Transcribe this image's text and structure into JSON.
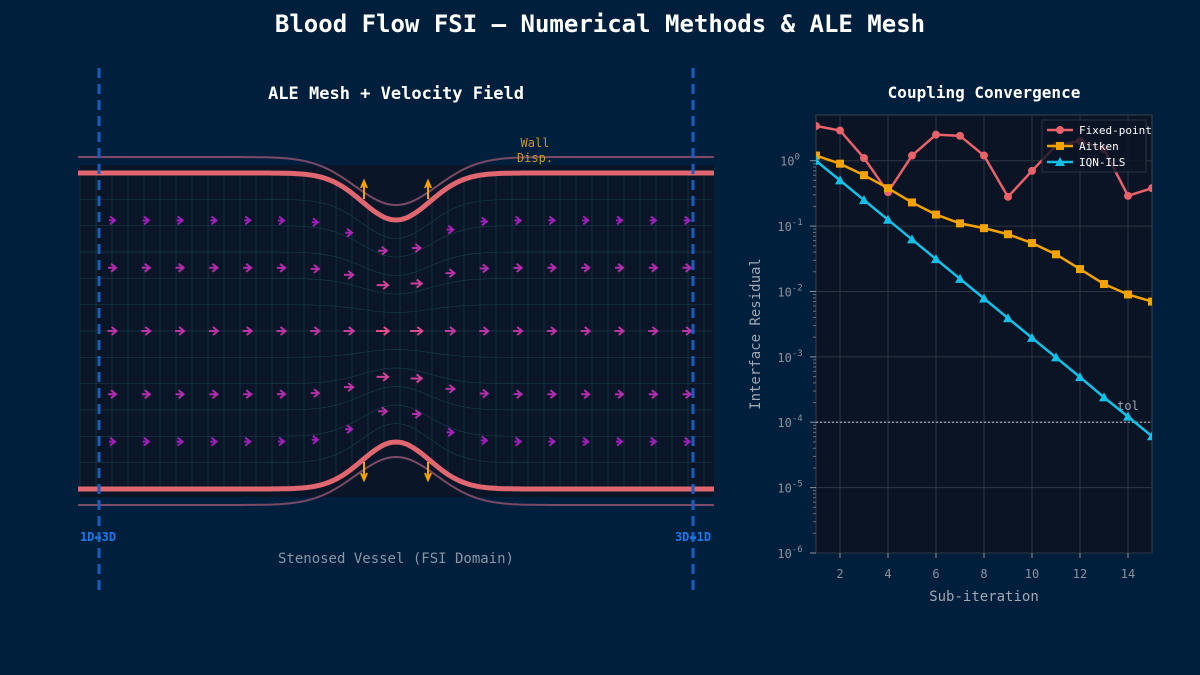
{
  "title": "Blood Flow FSI — Numerical Methods & ALE Mesh",
  "left_panel": {
    "title": "ALE Mesh + Velocity Field",
    "xlabel": "Stenosed Vessel (FSI Domain)",
    "wall_label_line1": "Wall",
    "wall_label_line2": "Disp.",
    "inlet_coupling_label": "1D↔3D",
    "outlet_coupling_label": "3D↔1D",
    "colors": {
      "wall": "#e06670",
      "wall_disp_arrow": "#f5a300",
      "coupling_line": "#1a5fc0",
      "velocity_slow": "#8a10c8",
      "velocity_fast": "#e0508a"
    }
  },
  "chart_data": {
    "type": "line",
    "title": "Coupling Convergence",
    "xlabel": "Sub-iteration",
    "ylabel": "Interface Residual",
    "yscale": "log",
    "xlim": [
      1,
      15
    ],
    "ylim": [
      1e-06,
      5
    ],
    "xticks": [
      2,
      4,
      6,
      8,
      10,
      12,
      14
    ],
    "yticks": [
      1e-06,
      1e-05,
      0.0001,
      0.001,
      0.01,
      0.1,
      1
    ],
    "ytick_exponents": [
      "-6",
      "-5",
      "-4",
      "-3",
      "-2",
      "-1",
      "0"
    ],
    "grid": true,
    "legend": "top-right",
    "x": [
      1,
      2,
      3,
      4,
      5,
      6,
      7,
      8,
      9,
      10,
      11,
      12,
      13,
      14,
      15
    ],
    "series": [
      {
        "name": "Fixed-point",
        "color": "#e8626a",
        "marker": "circle",
        "values": [
          3.4,
          2.9,
          1.1,
          0.33,
          1.2,
          2.5,
          2.4,
          1.2,
          0.28,
          0.7,
          1.7,
          2.0,
          1.5,
          0.29,
          0.38
        ]
      },
      {
        "name": "Aitken",
        "color": "#f5a300",
        "marker": "square",
        "values": [
          1.2,
          0.9,
          0.6,
          0.38,
          0.23,
          0.15,
          0.11,
          0.093,
          0.075,
          0.055,
          0.037,
          0.022,
          0.013,
          0.009,
          0.007
        ]
      },
      {
        "name": "IQN-ILS",
        "color": "#14c0e8",
        "marker": "triangle",
        "values": [
          1.0,
          0.5,
          0.25,
          0.125,
          0.0625,
          0.03125,
          0.0156,
          0.0078,
          0.0039,
          0.00195,
          0.00098,
          0.00049,
          0.00024,
          0.000122,
          6.1e-05
        ]
      }
    ],
    "tolerance": {
      "value": 0.0001,
      "label": "tol"
    }
  }
}
